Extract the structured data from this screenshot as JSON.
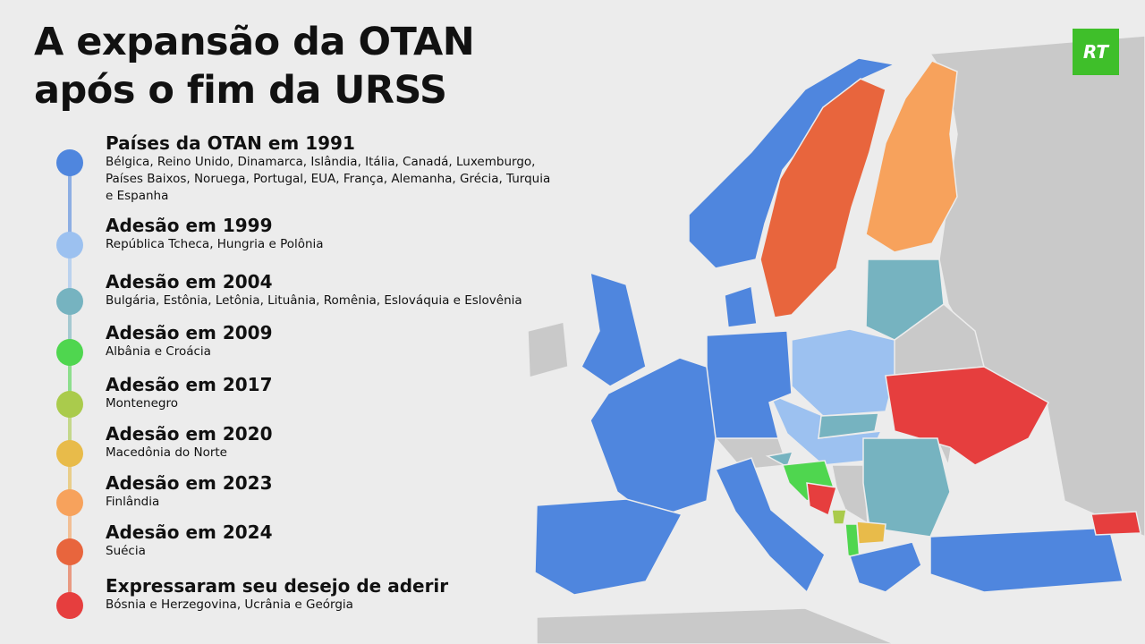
{
  "header": {
    "title_lines": [
      "A expansão da OTAN",
      "após o fim da URSS"
    ],
    "logo": "RT"
  },
  "legend": [
    {
      "title": "Países da OTAN em 1991",
      "description": "Bélgica, Reino Unido, Dinamarca, Islândia, Itália, Canadá, Luxemburgo, Países Baixos, Noruega, Portugal, EUA, França, Alemanha, Grécia, Turquia e Espanha",
      "color": "#4f86de"
    },
    {
      "title": "Adesão em 1999",
      "description": "República Tcheca, Hungria e Polônia",
      "color": "#9cc1f0"
    },
    {
      "title": "Adesão em 2004",
      "description": "Bulgária, Estônia, Letônia, Lituânia, Romênia, Eslováquia e Eslovênia",
      "color": "#76b3c0"
    },
    {
      "title": "Adesão em 2009",
      "description": "Albânia e Croácia",
      "color": "#4fd64f"
    },
    {
      "title": "Adesão em 2017",
      "description": "Montenegro",
      "color": "#aacb4c"
    },
    {
      "title": "Adesão em 2020",
      "description": "Macedônia do Norte",
      "color": "#e8bb4a"
    },
    {
      "title": "Adesão em 2023",
      "description": "Finlândia",
      "color": "#f7a25c"
    },
    {
      "title": "Adesão em 2024",
      "description": "Suécia",
      "color": "#e8653d"
    },
    {
      "title": "Expressaram seu desejo de aderir",
      "description": "Bósnia e Herzegovina, Ucrânia e Geórgia",
      "color": "#e63e3e"
    }
  ]
}
